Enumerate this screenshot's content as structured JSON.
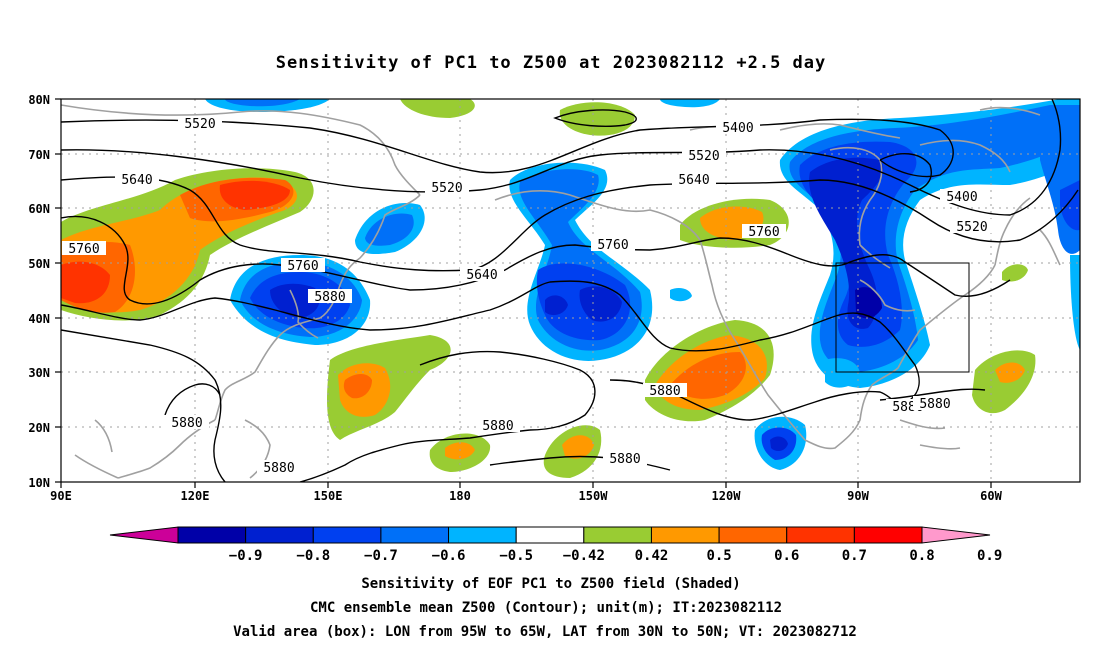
{
  "title": "Sensitivity of PC1 to Z500 at 2023082112 +2.5 day",
  "lat_ticks": [
    "80N",
    "70N",
    "60N",
    "50N",
    "40N",
    "30N",
    "20N",
    "10N"
  ],
  "lon_ticks": [
    "90E",
    "120E",
    "150E",
    "180",
    "150W",
    "120W",
    "90W",
    "60W"
  ],
  "colorbar": {
    "labels": [
      "-0.9",
      "-0.8",
      "-0.7",
      "-0.6",
      "-0.5",
      "-0.42",
      "0.42",
      "0.5",
      "0.6",
      "0.7",
      "0.8",
      "0.9"
    ],
    "colors": [
      "#cc0099",
      "#0000a8",
      "#0020d0",
      "#0040f0",
      "#0070f8",
      "#00b4ff",
      "#ffffff",
      "#99cc33",
      "#ff9900",
      "#ff6600",
      "#ff3300",
      "#ff0000",
      "#ff99cc"
    ]
  },
  "contour_labels": [
    "5400",
    "5400",
    "5520",
    "5520",
    "5520",
    "5520",
    "5640",
    "5640",
    "5640",
    "5760",
    "5760",
    "5760",
    "5760",
    "5880",
    "5880",
    "5880",
    "5880",
    "5880",
    "5880",
    "5880",
    "5880"
  ],
  "footer": [
    "Sensitivity of EOF PC1 to Z500 field (Shaded)",
    "CMC ensemble mean Z500 (Contour); unit(m); IT:2023082112",
    "Valid area (box): LON from 95W to 65W, LAT from 30N to 50N; VT: 2023082712"
  ],
  "valid_area": {
    "lon_from": "95W",
    "lon_to": "65W",
    "lat_from": "30N",
    "lat_to": "50N"
  }
}
